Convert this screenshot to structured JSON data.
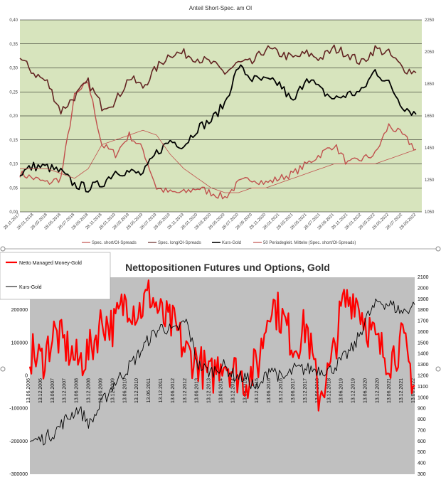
{
  "chart_data": [
    {
      "type": "line",
      "title": "Anteil Short-Spec. am OI",
      "x": [
        "28.11.2017",
        "28.01.2018",
        "28.03.2018",
        "28.05.2018",
        "28.07.2018",
        "28.09.2018",
        "28.11.2018",
        "28.01.2019",
        "28.03.2019",
        "28.05.2019",
        "28.07.2019",
        "28.09.2019",
        "28.11.2019",
        "28.01.2020",
        "28.03.2020",
        "28.05.2020",
        "28.07.2020",
        "28.09.2020",
        "28.11.2020",
        "28.01.2021",
        "28.03.2021",
        "28.05.2021",
        "28.07.2021",
        "28.09.2021",
        "28.11.2021",
        "28.01.2022",
        "28.03.2022",
        "28.05.2022",
        "28.07.2022",
        "28.09.2022"
      ],
      "y_left_ticks": [
        "0,00",
        "0,05",
        "0,10",
        "0,15",
        "0,20",
        "0,25",
        "0,30",
        "0,35",
        "0,40"
      ],
      "y_right_ticks": [
        "1050",
        "1250",
        "1450",
        "1650",
        "1850",
        "2050",
        "2250"
      ],
      "ylim_left": [
        0,
        0.4
      ],
      "ylim_right": [
        1050,
        2250
      ],
      "grid": true,
      "legend_position": "bottom",
      "series": [
        {
          "name": "Spec. short/OI-Spreads",
          "color": "#c0504d",
          "axis": "left",
          "values": [
            0.08,
            0.07,
            0.06,
            0.07,
            0.24,
            0.27,
            0.14,
            0.12,
            0.16,
            0.13,
            0.05,
            0.04,
            0.04,
            0.05,
            0.04,
            0.03,
            0.06,
            0.07,
            0.06,
            0.07,
            0.08,
            0.1,
            0.12,
            0.14,
            0.1,
            0.11,
            0.12,
            0.18,
            0.16,
            0.13
          ]
        },
        {
          "name": "Spec. long/OI-Spreads",
          "color": "#632523",
          "axis": "left",
          "values": [
            0.32,
            0.29,
            0.27,
            0.21,
            0.24,
            0.27,
            0.22,
            0.23,
            0.28,
            0.26,
            0.3,
            0.33,
            0.33,
            0.32,
            0.31,
            0.29,
            0.31,
            0.31,
            0.34,
            0.33,
            0.32,
            0.33,
            0.32,
            0.34,
            0.33,
            0.31,
            0.34,
            0.33,
            0.3,
            0.29
          ]
        },
        {
          "name": "Kurs-Gold",
          "color": "#000000",
          "axis": "right",
          "values": [
            1290,
            1335,
            1330,
            1300,
            1220,
            1200,
            1225,
            1305,
            1300,
            1285,
            1420,
            1495,
            1465,
            1575,
            1620,
            1730,
            1960,
            1880,
            1870,
            1850,
            1730,
            1900,
            1810,
            1755,
            1785,
            1800,
            1935,
            1850,
            1715,
            1660
          ]
        },
        {
          "name": "50 Periodegleit. Mittelw (Spec. short/OI-Spreads)",
          "color": "#c0504d",
          "axis": "left",
          "values": [
            0.09,
            0.09,
            0.09,
            0.08,
            0.07,
            0.09,
            0.14,
            0.15,
            0.16,
            0.17,
            0.16,
            0.12,
            0.09,
            0.07,
            0.05,
            0.04,
            0.04,
            0.05,
            0.05,
            0.06,
            0.07,
            0.08,
            0.09,
            0.1,
            0.1,
            0.1,
            0.1,
            0.11,
            0.12,
            0.13
          ]
        }
      ]
    },
    {
      "type": "line",
      "title": "Nettopositionen Futures und Options, Gold",
      "x": [
        "13.06.2006",
        "13.12.2006",
        "13.06.2007",
        "13.12.2007",
        "13.06.2008",
        "13.12.2008",
        "13.06.2009",
        "13.12.2009",
        "13.06.2010",
        "13.12.2010",
        "13.06.2011",
        "13.12.2011",
        "13.06.2012",
        "13.12.2012",
        "13.06.2013",
        "13.12.2013",
        "13.06.2014",
        "13.12.2014",
        "13.06.2015",
        "13.12.2015",
        "13.06.2016",
        "13.12.2016",
        "13.06.2017",
        "13.12.2017",
        "13.06.2018",
        "13.12.2018",
        "13.06.2019",
        "13.12.2019",
        "13.06.2020",
        "13.12.2020",
        "13.06.2021",
        "13.12.2021",
        "13.06.2022"
      ],
      "y_left_ticks": [
        "-300000",
        "-200000",
        "-100000",
        "0",
        "100000",
        "200000"
      ],
      "y_right_ticks": [
        "300",
        "400",
        "500",
        "600",
        "700",
        "800",
        "900",
        "1000",
        "1100",
        "1200",
        "1300",
        "1400",
        "1500",
        "1600",
        "1700",
        "1800",
        "1900",
        "2000",
        "2100"
      ],
      "ylim_left": [
        -300000,
        300000
      ],
      "ylim_right": [
        300,
        2100
      ],
      "grid": false,
      "legend_position": "top-left",
      "series": [
        {
          "name": "Netto Managed Money-Gold",
          "color": "#ff0000",
          "axis": "left",
          "values": [
            70000,
            45000,
            130000,
            90000,
            40000,
            75000,
            170000,
            150000,
            235000,
            195000,
            250000,
            175000,
            150000,
            70000,
            45000,
            -10000,
            55000,
            15000,
            -15000,
            40000,
            230000,
            175000,
            90000,
            155000,
            -60000,
            20000,
            215000,
            245000,
            160000,
            85000,
            55000,
            105000,
            -30000
          ]
        },
        {
          "name": "Kurs-Gold",
          "color": "#000000",
          "axis": "right",
          "values": [
            600,
            620,
            680,
            800,
            900,
            760,
            950,
            1130,
            1250,
            1390,
            1550,
            1650,
            1600,
            1700,
            1300,
            1230,
            1300,
            1200,
            1180,
            1070,
            1290,
            1160,
            1260,
            1260,
            1260,
            1250,
            1350,
            1470,
            1730,
            1880,
            1850,
            1780,
            1850
          ]
        }
      ]
    }
  ]
}
